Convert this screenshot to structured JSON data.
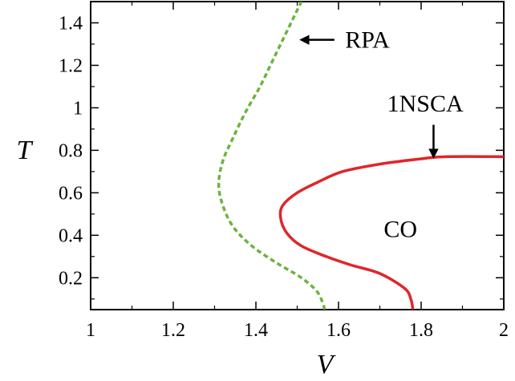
{
  "chart_data": {
    "type": "line",
    "xlabel": "V",
    "ylabel": "T",
    "xlim": [
      1,
      2
    ],
    "ylim": [
      0.05,
      1.5
    ],
    "xticks": [
      1,
      1.2,
      1.4,
      1.6,
      1.8,
      2
    ],
    "yticks": [
      0.2,
      0.4,
      0.6,
      0.8,
      1,
      1.2,
      1.4
    ],
    "xtick_labels": [
      "1",
      "1.2",
      "1.4",
      "1.6",
      "1.8",
      "2"
    ],
    "ytick_labels": [
      "0.2",
      "0.4",
      "0.6",
      "0.8",
      "1",
      "1.2",
      "1.4"
    ],
    "grid": false,
    "series": [
      {
        "name": "RPA",
        "color": "#6db33f",
        "dash": true,
        "points": [
          [
            1.567,
            0.05
          ],
          [
            1.55,
            0.13
          ],
          [
            1.51,
            0.2
          ],
          [
            1.45,
            0.27
          ],
          [
            1.39,
            0.35
          ],
          [
            1.345,
            0.44
          ],
          [
            1.32,
            0.54
          ],
          [
            1.31,
            0.64
          ],
          [
            1.32,
            0.75
          ],
          [
            1.345,
            0.86
          ],
          [
            1.375,
            0.98
          ],
          [
            1.41,
            1.1
          ],
          [
            1.44,
            1.22
          ],
          [
            1.47,
            1.34
          ],
          [
            1.5,
            1.46
          ],
          [
            1.51,
            1.5
          ]
        ]
      },
      {
        "name": "1NSCA",
        "color": "#e0262a",
        "dash": false,
        "points": [
          [
            1.78,
            0.05
          ],
          [
            1.775,
            0.1
          ],
          [
            1.76,
            0.15
          ],
          [
            1.7,
            0.22
          ],
          [
            1.63,
            0.26
          ],
          [
            1.57,
            0.3
          ],
          [
            1.51,
            0.35
          ],
          [
            1.475,
            0.41
          ],
          [
            1.46,
            0.48
          ],
          [
            1.465,
            0.54
          ],
          [
            1.5,
            0.6
          ],
          [
            1.55,
            0.65
          ],
          [
            1.61,
            0.7
          ],
          [
            1.7,
            0.735
          ],
          [
            1.8,
            0.76
          ],
          [
            1.86,
            0.77
          ],
          [
            2.0,
            0.77
          ]
        ]
      }
    ],
    "annotations": [
      {
        "text": "RPA",
        "x": 1.67,
        "y": 1.32
      },
      {
        "text": "1NSCA",
        "x": 1.81,
        "y": 1.02
      },
      {
        "text": "CO",
        "x": 1.75,
        "y": 0.43
      }
    ],
    "arrows": [
      {
        "from": [
          1.59,
          1.32
        ],
        "to": [
          1.51,
          1.32
        ]
      },
      {
        "from": [
          1.83,
          0.92
        ],
        "to": [
          1.83,
          0.77
        ]
      }
    ]
  }
}
